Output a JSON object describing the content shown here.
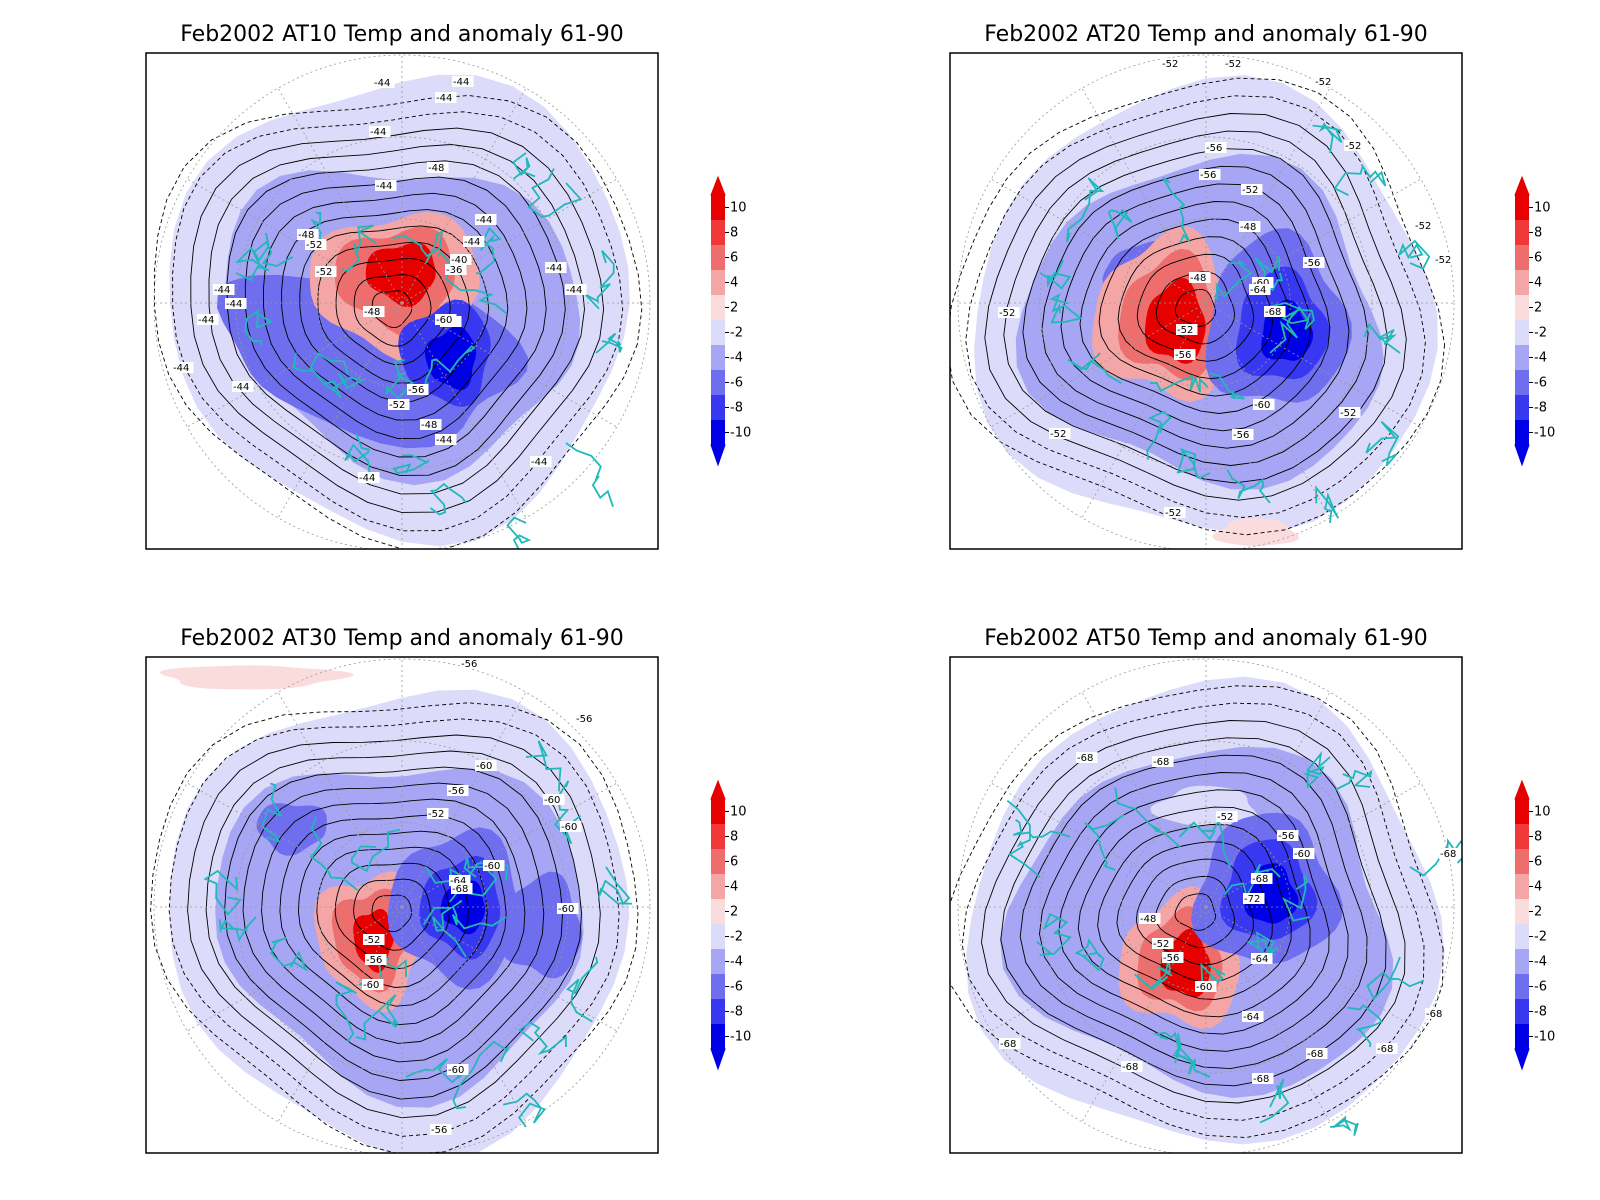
{
  "colors": {
    "coast": "#20b8b8",
    "contour": "#000000",
    "grid": "#999999",
    "neg_10": "#0000e6",
    "neg_8": "#3838f0",
    "neg_6": "#6e6eee",
    "neg_4": "#a6a6f4",
    "neg_2": "#dcdcfa",
    "pos_2": "#fadcdc",
    "pos_4": "#f4a6a6",
    "pos_6": "#ee6e6e",
    "pos_8": "#f03838",
    "pos_10": "#e60000"
  },
  "colorbar": {
    "ticks": [
      "10",
      "8",
      "6",
      "4",
      "2",
      "-2",
      "-4",
      "-6",
      "-8",
      "-10"
    ]
  },
  "panels": [
    {
      "title": "Feb2002 AT10 Temp and anomaly 61-90",
      "contour_labels": [
        "-44",
        "-44",
        "-44",
        "-44",
        "-44",
        "-44",
        "-48",
        "-44",
        "-40",
        "-36",
        "-48",
        "-52",
        "-52",
        "-44",
        "-44",
        "-48",
        "-52",
        "-60",
        "-56",
        "-52",
        "-48",
        "-44",
        "-44",
        "-44",
        "-44",
        "-44",
        "-44",
        "-44",
        "-44"
      ]
    },
    {
      "title": "Feb2002 AT20 Temp and anomaly 61-90",
      "contour_labels": [
        "-52",
        "-52",
        "-52",
        "-56",
        "-52",
        "-56",
        "-52",
        "-48",
        "-48",
        "-60",
        "-64",
        "-68",
        "-56",
        "-52",
        "-56",
        "-60",
        "-56",
        "-52",
        "-52",
        "-52",
        "-52",
        "-52",
        "-52"
      ]
    },
    {
      "title": "Feb2002 AT30 Temp and anomaly 61-90",
      "contour_labels": [
        "-56",
        "-56",
        "-60",
        "-56",
        "-60",
        "-60",
        "-52",
        "-60",
        "-64",
        "-68",
        "-60",
        "-52",
        "-56",
        "-60",
        "-60",
        "-56"
      ]
    },
    {
      "title": "Feb2002 AT50 Temp and anomaly 61-90",
      "contour_labels": [
        "-68",
        "-68",
        "-52",
        "-56",
        "-60",
        "-68",
        "-72",
        "-48",
        "-52",
        "-56",
        "-60",
        "-64",
        "-64",
        "-68",
        "-68",
        "-68",
        "-68",
        "-68",
        "-68",
        "-68"
      ]
    }
  ]
}
